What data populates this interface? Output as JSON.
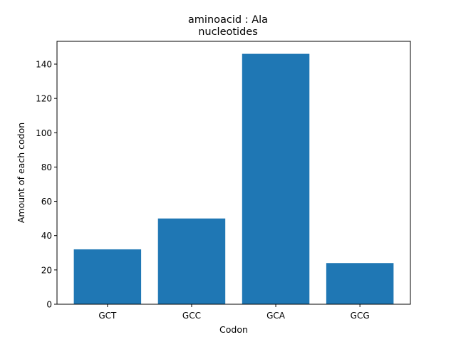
{
  "chart_data": {
    "type": "bar",
    "title": "aminoacid : Ala",
    "subtitle": "nucleotides",
    "xlabel": "Codon",
    "ylabel": "Amount of each codon",
    "categories": [
      "GCT",
      "GCC",
      "GCA",
      "GCG"
    ],
    "values": [
      32,
      50,
      146,
      24
    ],
    "ylim": [
      0,
      153.3
    ],
    "yticks": [
      0,
      20,
      40,
      60,
      80,
      100,
      120,
      140
    ],
    "grid": false,
    "bar_color": "#1f77b4"
  }
}
